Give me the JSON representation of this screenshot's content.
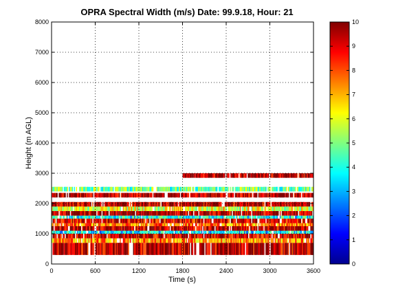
{
  "chart_data": {
    "type": "heatmap",
    "title": "OPRA Spectral Width (m/s)  Date: 99.9.18, Hour: 21",
    "xlabel": "Time (s)",
    "ylabel": "Height (m AGL)",
    "xlim": [
      0,
      3600
    ],
    "ylim": [
      0,
      8000
    ],
    "x_ticks": [
      "0",
      "600",
      "1200",
      "1800",
      "2400",
      "3000",
      "3600"
    ],
    "y_ticks": [
      "0",
      "1000",
      "2000",
      "3000",
      "4000",
      "5000",
      "6000",
      "7000",
      "8000"
    ],
    "grid": true,
    "colormap": "jet",
    "colorbar": {
      "range": [
        0,
        10
      ],
      "ticks": [
        "0",
        "1",
        "2",
        "3",
        "4",
        "5",
        "6",
        "7",
        "8",
        "9",
        "10"
      ]
    },
    "bands": [
      {
        "y0": 300,
        "y1": 700,
        "value": 9.4,
        "x0": 0,
        "x1": 3600
      },
      {
        "y0": 700,
        "y1": 850,
        "value": 7.2,
        "x0": 0,
        "x1": 3600
      },
      {
        "y0": 850,
        "y1": 1000,
        "value": 9.2,
        "x0": 0,
        "x1": 3600
      },
      {
        "y0": 1000,
        "y1": 1100,
        "value": 3.6,
        "x0": 0,
        "x1": 3600
      },
      {
        "y0": 1100,
        "y1": 1250,
        "value": 9.5,
        "x0": 0,
        "x1": 3600
      },
      {
        "y0": 1250,
        "y1": 1350,
        "value": 7.5,
        "x0": 0,
        "x1": 3600
      },
      {
        "y0": 1350,
        "y1": 1500,
        "value": 9.0,
        "x0": 0,
        "x1": 3600
      },
      {
        "y0": 1500,
        "y1": 1600,
        "value": 3.8,
        "x0": 0,
        "x1": 3600
      },
      {
        "y0": 1600,
        "y1": 1750,
        "value": 9.6,
        "x0": 0,
        "x1": 3600
      },
      {
        "y0": 1750,
        "y1": 1900,
        "value": 6.0,
        "x0": 0,
        "x1": 3600
      },
      {
        "y0": 1900,
        "y1": 2050,
        "value": 9.5,
        "x0": 0,
        "x1": 3600
      },
      {
        "y0": 2200,
        "y1": 2350,
        "value": 9.6,
        "x0": 0,
        "x1": 3600
      },
      {
        "y0": 2400,
        "y1": 2550,
        "value": 4.8,
        "x0": 0,
        "x1": 3600
      },
      {
        "y0": 2850,
        "y1": 3000,
        "value": 9.7,
        "x0": 1800,
        "x1": 3600
      }
    ]
  }
}
